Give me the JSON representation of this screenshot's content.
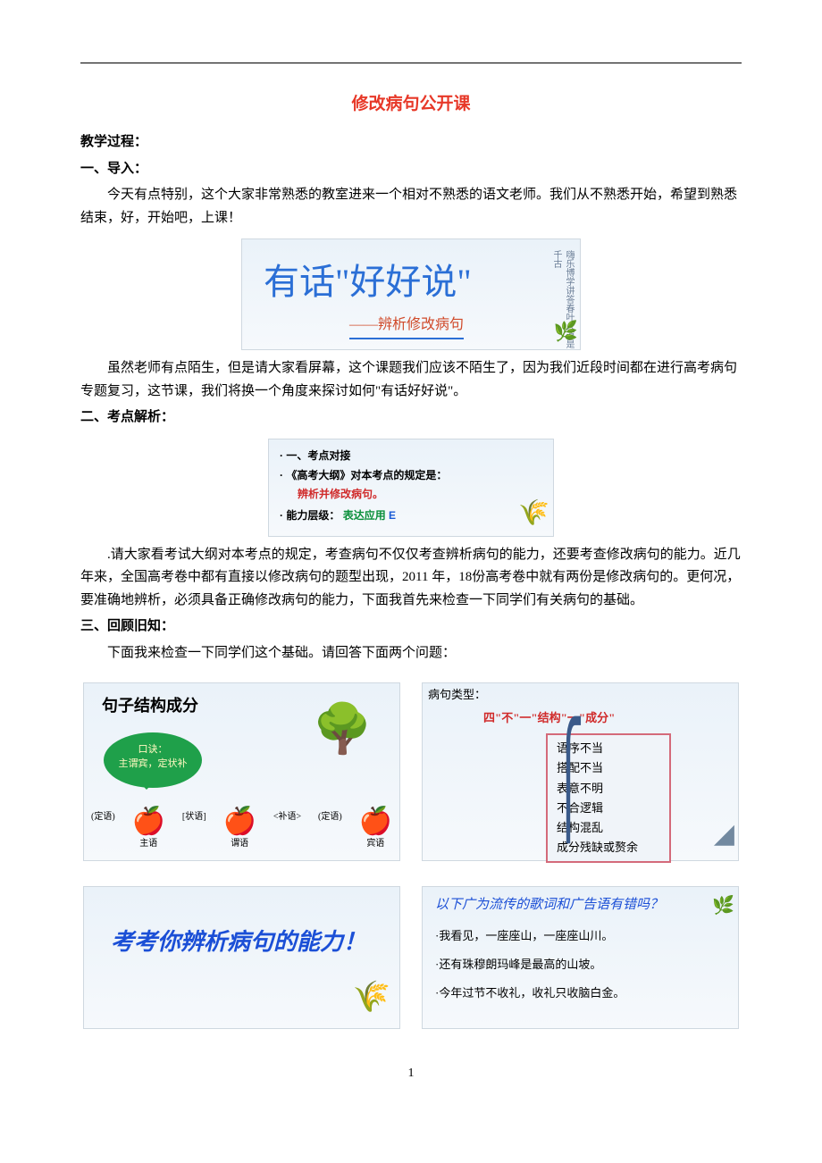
{
  "page": {
    "title": "修改病句公开课",
    "heading_process": "教学过程：",
    "section1_heading": "一、导入：",
    "section1_para1": "今天有点特别，这个大家非常熟悉的教室进来一个相对不熟悉的语文老师。我们从不熟悉开始，希望到熟悉结束，好，开始吧，上课！",
    "section1_para2": "虽然老师有点陌生，但是请大家看屏幕，这个课题我们应该不陌生了，因为我们近段时间都在进行高考病句专题复习，这节课，我们将换一个角度来探讨如何\"有话好好说\"。",
    "section2_heading": "二、考点解析：",
    "section2_para": ".请大家看考试大纲对本考点的规定，考查病句不仅仅考查辨析病句的能力，还要考查修改病句的能力。近几年来，全国高考卷中都有直接以修改病句的题型出现，2011 年，18份高考卷中就有两份是修改病句的。更何况，要准确地辨析，必须具备正确修改病句的能力，下面我首先来检查一下同学们有关病句的基础。",
    "section3_heading": "三、回顾旧知：",
    "section3_para": "下面我来检查一下同学们这个基础。请回答下面两个问题：",
    "page_number": "1"
  },
  "slide1": {
    "title": "有话\"好好说\"",
    "subtitle": "——辨析修改病句",
    "deco": "嗨乐博学讲答春叶人道是千古"
  },
  "slide2": {
    "line1": "· 一、考点对接",
    "line2": "· 《高考大纲》对本考点的规定是：",
    "line3": "辨析并修改病句。",
    "line4_label": "· 能力层级：",
    "line4_green": "表达应用",
    "line4_blue": "E"
  },
  "slide3": {
    "title": "句子结构成分",
    "bubble_line1": "口诀：",
    "bubble_line2": "主谓宾，定状补",
    "apples": [
      {
        "pre": "(定语)",
        "main": "主语",
        "size": "big"
      },
      {
        "pre": "[状语]",
        "main": "谓语",
        "post": "<补语>",
        "size": "big"
      },
      {
        "pre": "(定语)",
        "main": "宾语",
        "size": "big"
      }
    ]
  },
  "slide4": {
    "title": "病句类型：",
    "formula": "四\"不\"一\"结构\"一\"成分\"",
    "items": [
      "语序不当",
      "搭配不当",
      "表意不明",
      "不合逻辑",
      "结构混乱",
      "成分残缺或赘余"
    ]
  },
  "slide5": {
    "text": "考考你辨析病句的能力！"
  },
  "slide6": {
    "question": "以下广为流传的歌词和广告语有错吗？",
    "items": [
      "·我看见，一座座山，一座座山川。",
      "·还有珠穆朗玛峰是最高的山坡。",
      "·今年过节不收礼，收礼只收脑白金。"
    ]
  },
  "colors": {
    "title_red": "#e73828",
    "slide_blue": "#2b6fd6",
    "slide_orange": "#d04a2a"
  }
}
